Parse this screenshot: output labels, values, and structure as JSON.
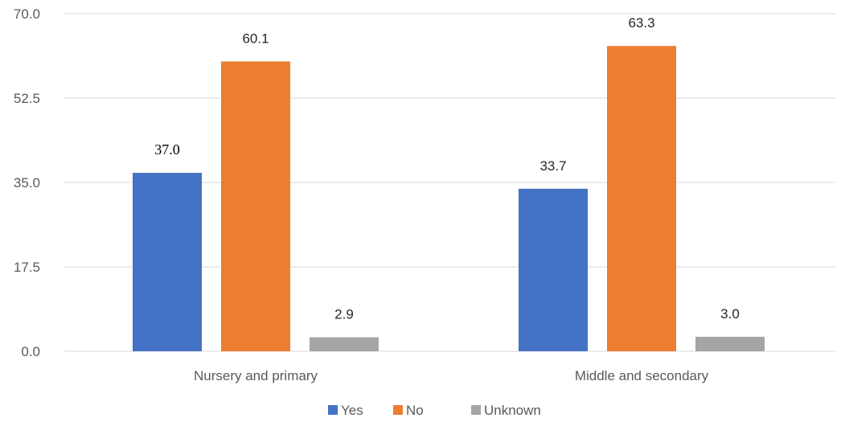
{
  "chart_data": {
    "type": "bar",
    "categories": [
      "Nursery and primary",
      "Middle and secondary"
    ],
    "series": [
      {
        "name": "Yes",
        "values": [
          37.0,
          33.7
        ],
        "labels": [
          "37.0",
          "33.7"
        ],
        "color": "#4472C4"
      },
      {
        "name": "No",
        "values": [
          60.1,
          63.3
        ],
        "labels": [
          "60.1",
          "63.3"
        ],
        "color": "#ED7D31"
      },
      {
        "name": "Unknown",
        "values": [
          2.9,
          3.0
        ],
        "labels": [
          "2.9",
          "3.0"
        ],
        "color": "#A5A5A5"
      }
    ],
    "ylim": [
      0,
      70
    ],
    "yticks": [
      "0.0",
      "17.5",
      "35.0",
      "52.5",
      "70.0"
    ],
    "ytick_values": [
      0,
      17.5,
      35,
      52.5,
      70
    ],
    "grid": true,
    "legend_position": "bottom",
    "title": "",
    "xlabel": "",
    "ylabel": ""
  }
}
